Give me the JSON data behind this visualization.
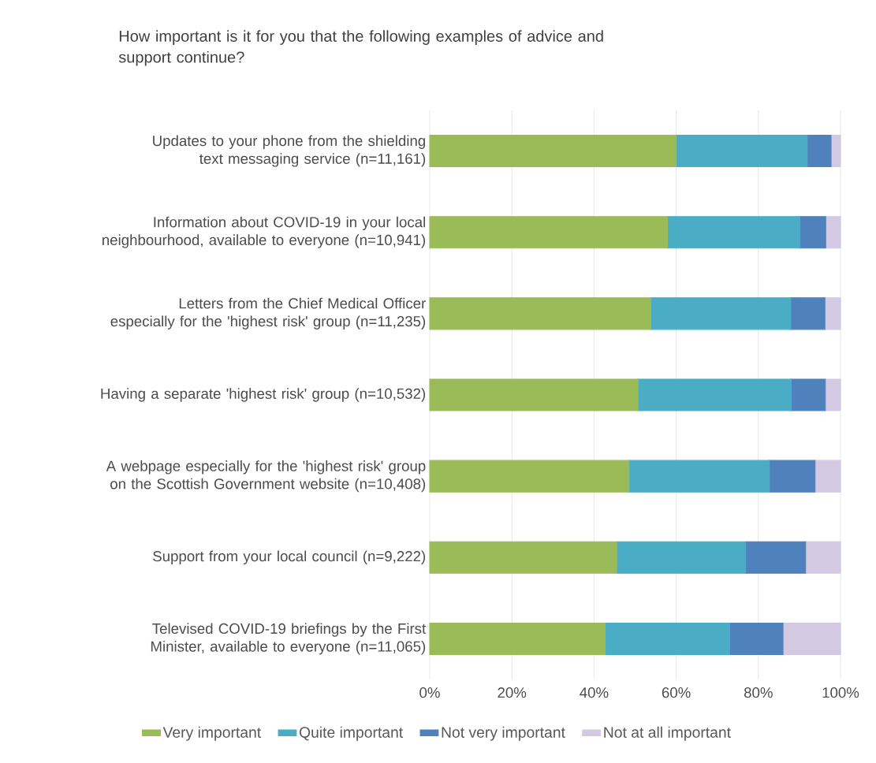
{
  "chart_data": {
    "type": "bar",
    "orientation": "horizontal",
    "stacked": true,
    "title": "How important is it for you that the following examples of advice and support continue?",
    "categories": [
      "Updates to your phone from the shielding text messaging service (n=11,161)",
      "Information about COVID-19 in your local neighbourhood, available to everyone (n=10,941)",
      "Letters from the Chief Medical Officer especially for the 'highest risk' group (n=11,235)",
      "Having a separate 'highest risk' group (n=10,532)",
      "A webpage especially for the 'highest risk' group on the Scottish Government website (n=10,408)",
      "Support from your local council (n=9,222)",
      "Televised COVID-19 briefings by the First Minister, available to everyone (n=11,065)"
    ],
    "series": [
      {
        "name": "Very important",
        "color": "#9bbb59",
        "values": [
          60.0,
          57.9,
          53.8,
          50.7,
          48.5,
          45.5,
          42.7
        ]
      },
      {
        "name": "Quite important",
        "color": "#4bacc6",
        "values": [
          31.9,
          32.2,
          34.1,
          37.3,
          34.2,
          31.4,
          30.3
        ]
      },
      {
        "name": "Not very important",
        "color": "#4f81bd",
        "values": [
          5.8,
          6.3,
          8.3,
          8.3,
          11.1,
          14.6,
          13.0
        ]
      },
      {
        "name": "Not at all important",
        "color": "#d4c9e2",
        "values": [
          2.3,
          3.6,
          3.8,
          3.7,
          6.2,
          8.5,
          14.0
        ]
      }
    ],
    "xlim": [
      0,
      100
    ],
    "xticks": [
      {
        "value": 0,
        "label": "0%"
      },
      {
        "value": 20,
        "label": "20%"
      },
      {
        "value": 40,
        "label": "40%"
      },
      {
        "value": 60,
        "label": "60%"
      },
      {
        "value": 80,
        "label": "80%"
      },
      {
        "value": 100,
        "label": "100%"
      }
    ],
    "grid": "x",
    "legend": "bottom"
  }
}
